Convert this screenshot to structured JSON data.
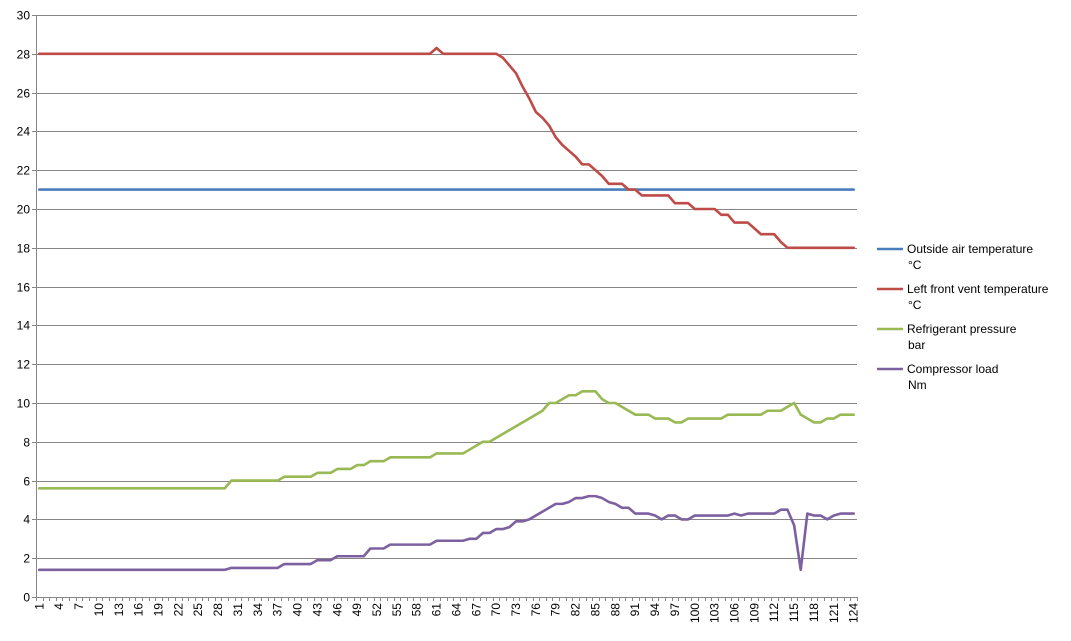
{
  "chart_data": {
    "type": "line",
    "title": "",
    "xlabel": "",
    "ylabel": "",
    "ylim": [
      0,
      30
    ],
    "y_ticks": [
      0,
      2,
      4,
      6,
      8,
      10,
      12,
      14,
      16,
      18,
      20,
      22,
      24,
      26,
      28,
      30
    ],
    "x_range": [
      1,
      124
    ],
    "x_tick_labels": [
      1,
      4,
      7,
      10,
      13,
      16,
      19,
      22,
      25,
      28,
      31,
      34,
      37,
      40,
      43,
      46,
      49,
      52,
      55,
      58,
      61,
      64,
      67,
      70,
      73,
      76,
      79,
      82,
      85,
      88,
      91,
      94,
      97,
      100,
      103,
      106,
      109,
      112,
      115,
      118,
      121,
      124
    ],
    "grid": "horizontal",
    "legend_position": "right",
    "series": [
      {
        "name": "Outside air temperature °C",
        "color": "#4a7ebb",
        "points": [
          [
            1,
            21
          ],
          [
            124,
            21
          ]
        ]
      },
      {
        "name": "Left front vent temperature °C",
        "color": "#be4b48",
        "points": [
          [
            1,
            28
          ],
          [
            60,
            28
          ],
          [
            61,
            28.3
          ],
          [
            62,
            28
          ],
          [
            70,
            28
          ],
          [
            71,
            27.8
          ],
          [
            72,
            27.4
          ],
          [
            73,
            27
          ],
          [
            74,
            26.3
          ],
          [
            75,
            25.7
          ],
          [
            76,
            25
          ],
          [
            77,
            24.7
          ],
          [
            78,
            24.3
          ],
          [
            79,
            23.7
          ],
          [
            80,
            23.3
          ],
          [
            81,
            23
          ],
          [
            82,
            22.7
          ],
          [
            83,
            22.3
          ],
          [
            84,
            22.3
          ],
          [
            85,
            22
          ],
          [
            86,
            21.7
          ],
          [
            87,
            21.3
          ],
          [
            89,
            21.3
          ],
          [
            90,
            21
          ],
          [
            91,
            21
          ],
          [
            92,
            20.7
          ],
          [
            96,
            20.7
          ],
          [
            97,
            20.3
          ],
          [
            99,
            20.3
          ],
          [
            100,
            20
          ],
          [
            103,
            20
          ],
          [
            104,
            19.7
          ],
          [
            105,
            19.7
          ],
          [
            106,
            19.3
          ],
          [
            108,
            19.3
          ],
          [
            109,
            19
          ],
          [
            110,
            18.7
          ],
          [
            112,
            18.7
          ],
          [
            113,
            18.3
          ],
          [
            114,
            18
          ],
          [
            124,
            18
          ]
        ]
      },
      {
        "name": "Refrigerant pressure bar",
        "color": "#98b954",
        "points": [
          [
            1,
            5.6
          ],
          [
            29,
            5.6
          ],
          [
            30,
            6
          ],
          [
            37,
            6
          ],
          [
            38,
            6.2
          ],
          [
            42,
            6.2
          ],
          [
            43,
            6.4
          ],
          [
            45,
            6.4
          ],
          [
            46,
            6.6
          ],
          [
            48,
            6.6
          ],
          [
            49,
            6.8
          ],
          [
            50,
            6.8
          ],
          [
            51,
            7
          ],
          [
            53,
            7
          ],
          [
            54,
            7.2
          ],
          [
            60,
            7.2
          ],
          [
            61,
            7.4
          ],
          [
            65,
            7.4
          ],
          [
            66,
            7.6
          ],
          [
            67,
            7.8
          ],
          [
            68,
            8
          ],
          [
            69,
            8
          ],
          [
            70,
            8.2
          ],
          [
            71,
            8.4
          ],
          [
            72,
            8.6
          ],
          [
            73,
            8.8
          ],
          [
            74,
            9
          ],
          [
            75,
            9.2
          ],
          [
            76,
            9.4
          ],
          [
            77,
            9.6
          ],
          [
            78,
            10
          ],
          [
            79,
            10
          ],
          [
            80,
            10.2
          ],
          [
            81,
            10.4
          ],
          [
            82,
            10.4
          ],
          [
            83,
            10.6
          ],
          [
            85,
            10.6
          ],
          [
            86,
            10.2
          ],
          [
            87,
            10
          ],
          [
            88,
            10
          ],
          [
            89,
            9.8
          ],
          [
            90,
            9.6
          ],
          [
            91,
            9.4
          ],
          [
            93,
            9.4
          ],
          [
            94,
            9.2
          ],
          [
            96,
            9.2
          ],
          [
            97,
            9
          ],
          [
            98,
            9
          ],
          [
            99,
            9.2
          ],
          [
            104,
            9.2
          ],
          [
            105,
            9.4
          ],
          [
            110,
            9.4
          ],
          [
            111,
            9.6
          ],
          [
            113,
            9.6
          ],
          [
            114,
            9.8
          ],
          [
            115,
            10
          ],
          [
            116,
            9.4
          ],
          [
            117,
            9.2
          ],
          [
            118,
            9
          ],
          [
            119,
            9
          ],
          [
            120,
            9.2
          ],
          [
            121,
            9.2
          ],
          [
            122,
            9.4
          ],
          [
            124,
            9.4
          ]
        ]
      },
      {
        "name": "Compressor load Nm",
        "color": "#7d60a0",
        "points": [
          [
            1,
            1.4
          ],
          [
            29,
            1.4
          ],
          [
            30,
            1.5
          ],
          [
            37,
            1.5
          ],
          [
            38,
            1.7
          ],
          [
            42,
            1.7
          ],
          [
            43,
            1.9
          ],
          [
            45,
            1.9
          ],
          [
            46,
            2.1
          ],
          [
            50,
            2.1
          ],
          [
            51,
            2.5
          ],
          [
            53,
            2.5
          ],
          [
            54,
            2.7
          ],
          [
            60,
            2.7
          ],
          [
            61,
            2.9
          ],
          [
            65,
            2.9
          ],
          [
            66,
            3
          ],
          [
            67,
            3
          ],
          [
            68,
            3.3
          ],
          [
            69,
            3.3
          ],
          [
            70,
            3.5
          ],
          [
            71,
            3.5
          ],
          [
            72,
            3.6
          ],
          [
            73,
            3.9
          ],
          [
            74,
            3.9
          ],
          [
            75,
            4
          ],
          [
            76,
            4.2
          ],
          [
            77,
            4.4
          ],
          [
            78,
            4.6
          ],
          [
            79,
            4.8
          ],
          [
            80,
            4.8
          ],
          [
            81,
            4.9
          ],
          [
            82,
            5.1
          ],
          [
            83,
            5.1
          ],
          [
            84,
            5.2
          ],
          [
            85,
            5.2
          ],
          [
            86,
            5.1
          ],
          [
            87,
            4.9
          ],
          [
            88,
            4.8
          ],
          [
            89,
            4.6
          ],
          [
            90,
            4.6
          ],
          [
            91,
            4.3
          ],
          [
            93,
            4.3
          ],
          [
            94,
            4.2
          ],
          [
            95,
            4
          ],
          [
            96,
            4.2
          ],
          [
            97,
            4.2
          ],
          [
            98,
            4
          ],
          [
            99,
            4
          ],
          [
            100,
            4.2
          ],
          [
            105,
            4.2
          ],
          [
            106,
            4.3
          ],
          [
            107,
            4.2
          ],
          [
            108,
            4.3
          ],
          [
            112,
            4.3
          ],
          [
            113,
            4.5
          ],
          [
            114,
            4.5
          ],
          [
            115,
            3.7
          ],
          [
            116,
            1.4
          ],
          [
            117,
            4.3
          ],
          [
            118,
            4.2
          ],
          [
            119,
            4.2
          ],
          [
            120,
            4
          ],
          [
            121,
            4.2
          ],
          [
            122,
            4.3
          ],
          [
            124,
            4.3
          ]
        ]
      }
    ],
    "legend": [
      {
        "line1": "Outside air temperature",
        "line2": "°C"
      },
      {
        "line1": "Left front vent temperature",
        "line2": "°C"
      },
      {
        "line1": "Refrigerant pressure",
        "line2": "bar"
      },
      {
        "line1": "Compressor load",
        "line2": "Nm"
      }
    ]
  }
}
